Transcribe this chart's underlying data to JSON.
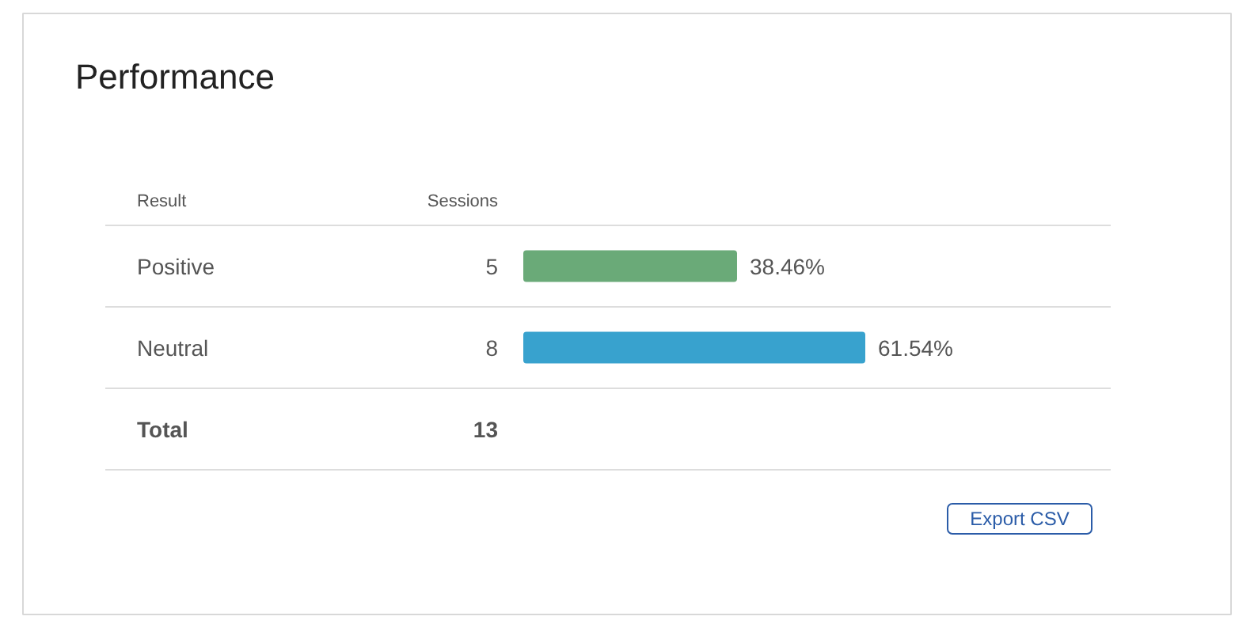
{
  "chart_data": {
    "type": "bar",
    "orientation": "horizontal",
    "title": "Performance",
    "categories": [
      "Positive",
      "Neutral"
    ],
    "values": [
      38.46,
      61.54
    ],
    "colors": [
      "#6aaa78",
      "#38a2ce"
    ],
    "value_labels": [
      "38.46%",
      "61.54%"
    ],
    "annotations": [
      "Result",
      "Sessions",
      "5",
      "8",
      "Total",
      "13",
      "Export CSV"
    ]
  }
}
